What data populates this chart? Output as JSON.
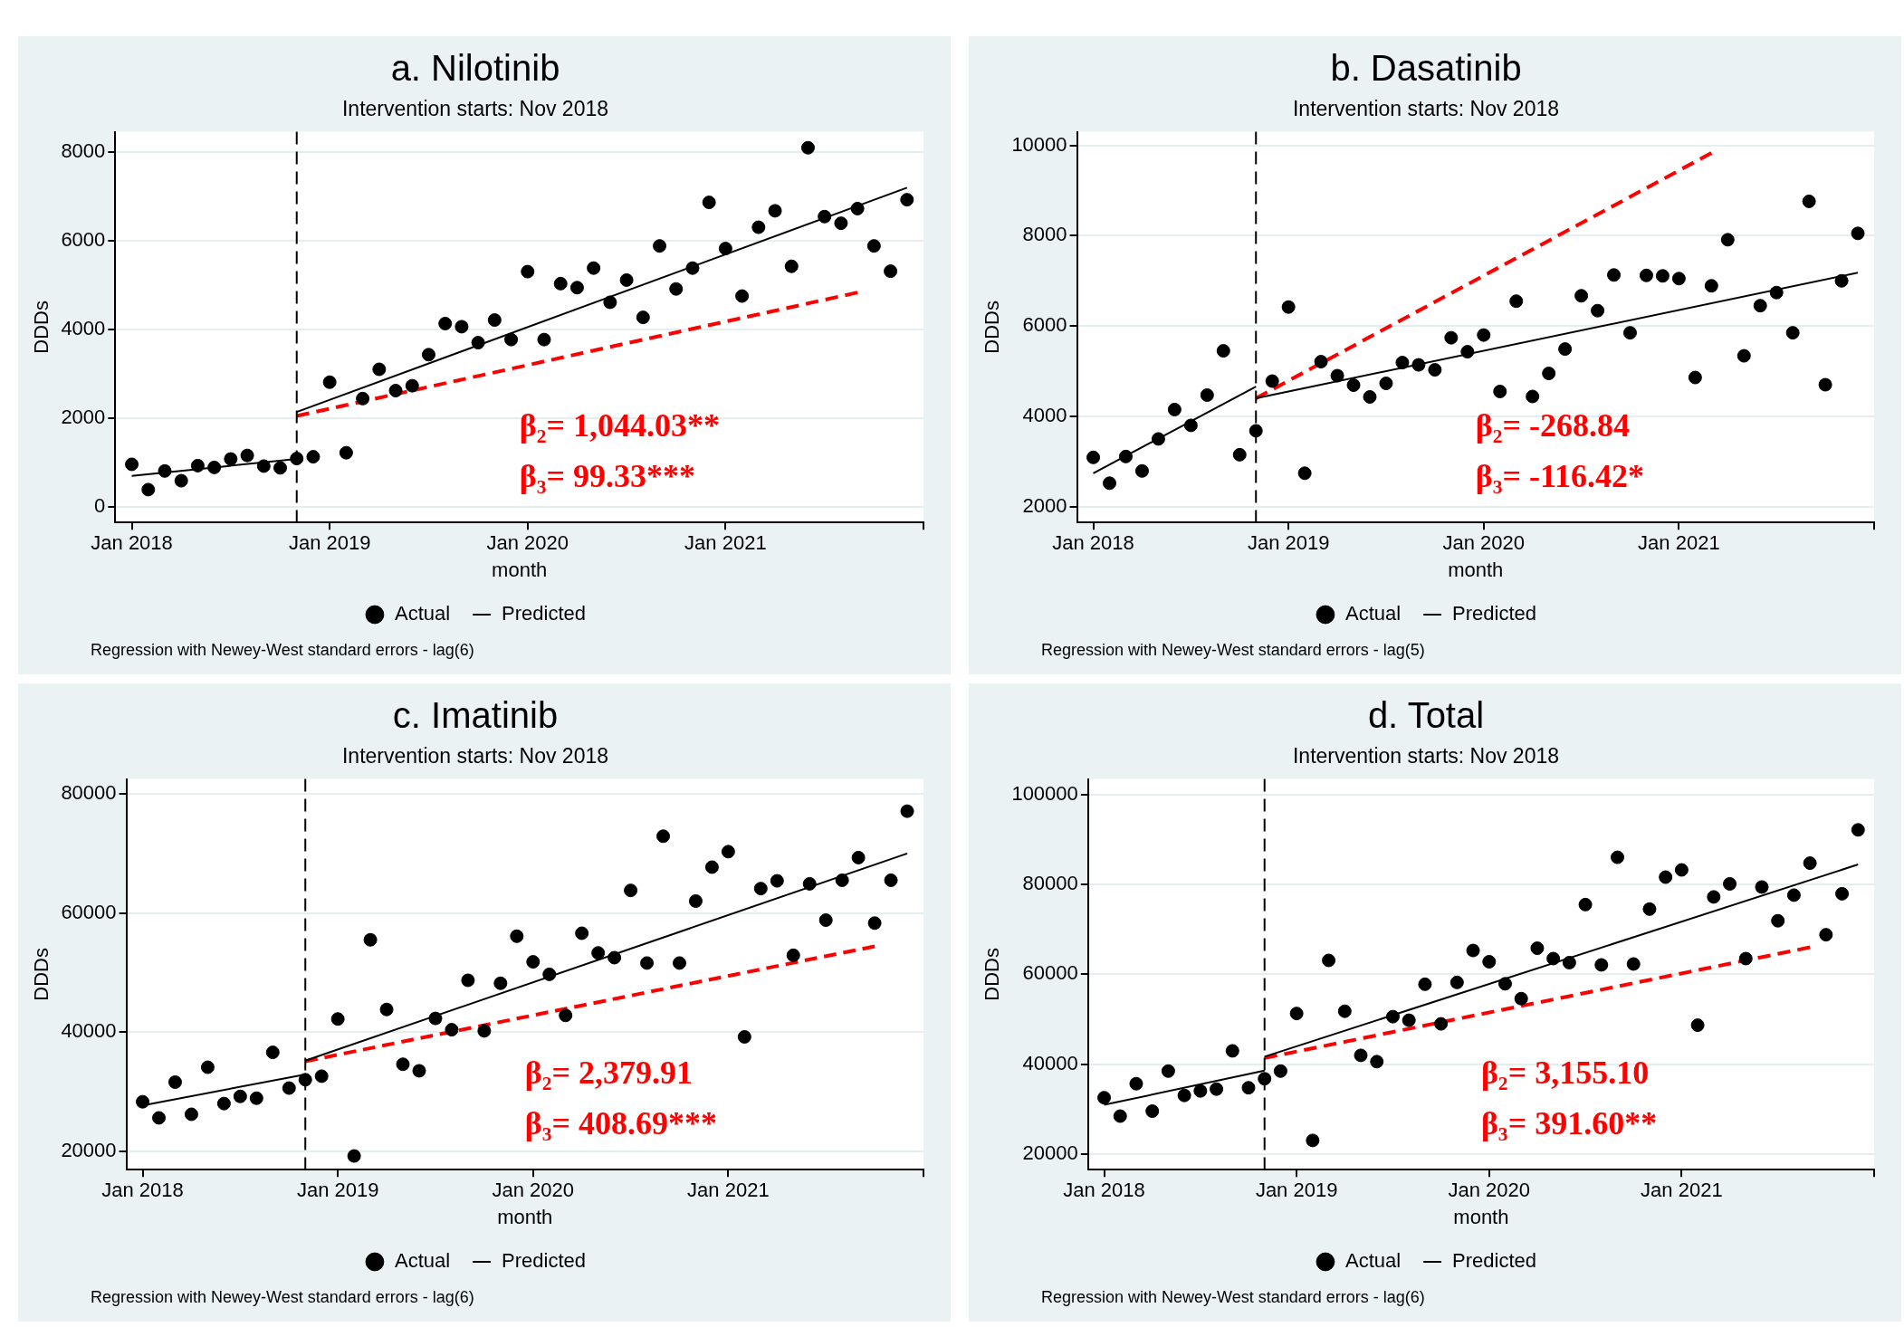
{
  "chart_data": [
    {
      "type": "scatter",
      "title": "a. Nilotinib",
      "subtitle": "Intervention starts: Nov 2018",
      "xlabel": "month",
      "ylabel": "DDDs",
      "x": [
        "2018-01",
        "2018-02",
        "2018-03",
        "2018-04",
        "2018-05",
        "2018-06",
        "2018-07",
        "2018-08",
        "2018-09",
        "2018-10",
        "2018-11",
        "2018-12",
        "2019-01",
        "2019-02",
        "2019-03",
        "2019-04",
        "2019-05",
        "2019-06",
        "2019-07",
        "2019-08",
        "2019-09",
        "2019-10",
        "2019-11",
        "2019-12",
        "2020-01",
        "2020-02",
        "2020-03",
        "2020-04",
        "2020-05",
        "2020-06",
        "2020-07",
        "2020-08",
        "2020-09",
        "2020-10",
        "2020-11",
        "2020-12",
        "2021-01",
        "2021-02",
        "2021-03",
        "2021-04",
        "2021-05",
        "2021-06",
        "2021-07",
        "2021-08",
        "2021-09",
        "2021-10",
        "2021-11",
        "2021-12"
      ],
      "series": [
        {
          "name": "Actual",
          "type": "scatter",
          "color": "#000000",
          "marker": "circle",
          "values": [
            960,
            390,
            810,
            590,
            930,
            890,
            1080,
            1160,
            920,
            880,
            1090,
            1130,
            2810,
            1220,
            2440,
            3100,
            2620,
            2730,
            3430,
            4130,
            4060,
            3700,
            4210,
            3770,
            5300,
            3770,
            5030,
            4940,
            5380,
            4610,
            5110,
            4270,
            5880,
            4910,
            5380,
            6860,
            5820,
            4750,
            6300,
            6670,
            5420,
            8090,
            6540,
            6390,
            6720,
            5880,
            5310,
            6920
          ]
        },
        {
          "name": "Predicted",
          "type": "line",
          "color": "#000000",
          "marker": "none",
          "line_style": "solid",
          "x": [
            "2018-01",
            "2018-11"
          ],
          "values": [
            700,
            1080
          ]
        },
        {
          "type": "line",
          "color": "#000000",
          "marker": "none",
          "line_style": "solid",
          "x": [
            "2018-11",
            "2021-12"
          ],
          "values": [
            2140,
            7190
          ]
        },
        {
          "type": "line",
          "color": "#ff0000",
          "marker": "none",
          "line_style": "dashed",
          "x": [
            "2018-11",
            "2021-09"
          ],
          "values": [
            2050,
            4830
          ]
        }
      ],
      "xlim": [
        "2017-12",
        "2022-01"
      ],
      "xticks": [
        {
          "value": "2018-01",
          "label": "Jan 2018"
        },
        {
          "value": "2019-01",
          "label": "Jan 2019"
        },
        {
          "value": "2020-01",
          "label": "Jan 2020"
        },
        {
          "value": "2021-01",
          "label": "Jan 2021"
        },
        {
          "value": "2022-01",
          "label": null
        }
      ],
      "ylim": [
        -350,
        8450
      ],
      "yticks": [
        0,
        2000,
        4000,
        6000,
        8000
      ],
      "grid": "y",
      "legend": "bottom",
      "ref_lines": [
        {
          "axis": "x",
          "value": "2018-11",
          "color": "#000000",
          "line_style": "dashed"
        }
      ],
      "annotations": [
        "β₂= 1,044.03**",
        "β₃= 99.33***",
        "Regression with Newey-West standard errors - lag(6)"
      ]
    },
    {
      "type": "scatter",
      "title": "b. Dasatinib",
      "subtitle": "Intervention starts: Nov 2018",
      "xlabel": "month",
      "ylabel": "DDDs",
      "x": [
        "2018-01",
        "2018-02",
        "2018-03",
        "2018-04",
        "2018-05",
        "2018-06",
        "2018-07",
        "2018-08",
        "2018-09",
        "2018-10",
        "2018-11",
        "2018-12",
        "2019-01",
        "2019-02",
        "2019-03",
        "2019-04",
        "2019-05",
        "2019-06",
        "2019-07",
        "2019-08",
        "2019-09",
        "2019-10",
        "2019-11",
        "2019-12",
        "2020-01",
        "2020-02",
        "2020-03",
        "2020-04",
        "2020-05",
        "2020-06",
        "2020-07",
        "2020-08",
        "2020-09",
        "2020-10",
        "2020-11",
        "2020-12",
        "2021-01",
        "2021-02",
        "2021-03",
        "2021-04",
        "2021-05",
        "2021-06",
        "2021-07",
        "2021-08",
        "2021-09",
        "2021-10",
        "2021-11",
        "2021-12"
      ],
      "series": [
        {
          "name": "Actual",
          "type": "scatter",
          "color": "#000000",
          "marker": "circle",
          "values": [
            3090,
            2520,
            3110,
            2790,
            3500,
            4150,
            3800,
            4470,
            5450,
            3150,
            3680,
            4780,
            6420,
            2740,
            5210,
            4900,
            4690,
            4430,
            4730,
            5190,
            5140,
            5030,
            5740,
            5430,
            5800,
            4550,
            6550,
            4440,
            4950,
            5490,
            6670,
            6340,
            7130,
            5850,
            7120,
            7110,
            7050,
            4860,
            6890,
            7910,
            5340,
            6450,
            6740,
            5850,
            8760,
            4700,
            7000,
            8050
          ]
        },
        {
          "name": "Predicted",
          "type": "line",
          "color": "#000000",
          "marker": "none",
          "line_style": "solid",
          "x": [
            "2018-01",
            "2018-11"
          ],
          "values": [
            2740,
            4660
          ]
        },
        {
          "type": "line",
          "color": "#000000",
          "marker": "none",
          "line_style": "solid",
          "x": [
            "2018-11",
            "2021-12"
          ],
          "values": [
            4400,
            7180
          ]
        },
        {
          "type": "line",
          "color": "#ff0000",
          "marker": "none",
          "line_style": "dashed",
          "x": [
            "2018-11",
            "2021-03"
          ],
          "values": [
            4400,
            9830
          ]
        }
      ],
      "xlim": [
        "2017-12",
        "2022-01"
      ],
      "xticks": [
        {
          "value": "2018-01",
          "label": "Jan 2018"
        },
        {
          "value": "2019-01",
          "label": "Jan 2019"
        },
        {
          "value": "2020-01",
          "label": "Jan 2020"
        },
        {
          "value": "2021-01",
          "label": "Jan 2021"
        },
        {
          "value": "2022-01",
          "label": null
        }
      ],
      "ylim": [
        1650,
        10300
      ],
      "yticks": [
        2000,
        4000,
        6000,
        8000,
        10000
      ],
      "grid": "y",
      "legend": "bottom",
      "ref_lines": [
        {
          "axis": "x",
          "value": "2018-11",
          "color": "#000000",
          "line_style": "dashed"
        }
      ],
      "annotations": [
        "β₂= -268.84",
        "β₃= -116.42*",
        "Regression with Newey-West standard errors - lag(5)"
      ]
    },
    {
      "type": "scatter",
      "title": "c. Imatinib",
      "subtitle": "Intervention starts: Nov 2018",
      "xlabel": "month",
      "ylabel": "DDDs",
      "x": [
        "2018-01",
        "2018-02",
        "2018-03",
        "2018-04",
        "2018-05",
        "2018-06",
        "2018-07",
        "2018-08",
        "2018-09",
        "2018-10",
        "2018-11",
        "2018-12",
        "2019-01",
        "2019-02",
        "2019-03",
        "2019-04",
        "2019-05",
        "2019-06",
        "2019-07",
        "2019-08",
        "2019-09",
        "2019-10",
        "2019-11",
        "2019-12",
        "2020-01",
        "2020-02",
        "2020-03",
        "2020-04",
        "2020-05",
        "2020-06",
        "2020-07",
        "2020-08",
        "2020-09",
        "2020-10",
        "2020-11",
        "2020-12",
        "2021-01",
        "2021-02",
        "2021-03",
        "2021-04",
        "2021-05",
        "2021-06",
        "2021-07",
        "2021-08",
        "2021-09",
        "2021-10",
        "2021-11",
        "2021-12"
      ],
      "series": [
        {
          "name": "Actual",
          "type": "scatter",
          "color": "#000000",
          "marker": "circle",
          "values": [
            28300,
            25600,
            31600,
            26200,
            34100,
            28000,
            29200,
            28900,
            36600,
            30600,
            32000,
            32600,
            42200,
            19200,
            55500,
            43800,
            34600,
            33500,
            42300,
            40400,
            48700,
            40200,
            48200,
            56100,
            51800,
            49700,
            42800,
            56600,
            53300,
            52500,
            63800,
            51600,
            72900,
            51600,
            62000,
            67700,
            70300,
            39200,
            64100,
            65400,
            52900,
            64900,
            58800,
            65500,
            69300,
            58300,
            65500,
            77100
          ]
        },
        {
          "name": "Predicted",
          "type": "line",
          "color": "#000000",
          "marker": "none",
          "line_style": "solid",
          "x": [
            "2018-01",
            "2018-11"
          ],
          "values": [
            27700,
            32900
          ]
        },
        {
          "type": "line",
          "color": "#000000",
          "marker": "none",
          "line_style": "solid",
          "x": [
            "2018-11",
            "2021-12"
          ],
          "values": [
            35200,
            70000
          ]
        },
        {
          "type": "line",
          "color": "#ff0000",
          "marker": "none",
          "line_style": "dashed",
          "x": [
            "2018-11",
            "2021-10"
          ],
          "values": [
            35100,
            54400
          ]
        }
      ],
      "xlim": [
        "2017-12",
        "2022-01"
      ],
      "xticks": [
        {
          "value": "2018-01",
          "label": "Jan 2018"
        },
        {
          "value": "2019-01",
          "label": "Jan 2019"
        },
        {
          "value": "2020-01",
          "label": "Jan 2020"
        },
        {
          "value": "2021-01",
          "label": "Jan 2021"
        },
        {
          "value": "2022-01",
          "label": null
        }
      ],
      "ylim": [
        16900,
        82500
      ],
      "yticks": [
        20000,
        40000,
        60000,
        80000
      ],
      "grid": "y",
      "legend": "bottom",
      "ref_lines": [
        {
          "axis": "x",
          "value": "2018-11",
          "color": "#000000",
          "line_style": "dashed"
        }
      ],
      "annotations": [
        "β₂= 2,379.91",
        "β₃= 408.69***",
        "Regression with Newey-West standard errors - lag(6)"
      ]
    },
    {
      "type": "scatter",
      "title": "d. Total",
      "subtitle": "Intervention starts: Nov 2018",
      "xlabel": "month",
      "ylabel": "DDDs",
      "x": [
        "2018-01",
        "2018-02",
        "2018-03",
        "2018-04",
        "2018-05",
        "2018-06",
        "2018-07",
        "2018-08",
        "2018-09",
        "2018-10",
        "2018-11",
        "2018-12",
        "2019-01",
        "2019-02",
        "2019-03",
        "2019-04",
        "2019-05",
        "2019-06",
        "2019-07",
        "2019-08",
        "2019-09",
        "2019-10",
        "2019-11",
        "2019-12",
        "2020-01",
        "2020-02",
        "2020-03",
        "2020-04",
        "2020-05",
        "2020-06",
        "2020-07",
        "2020-08",
        "2020-09",
        "2020-10",
        "2020-11",
        "2020-12",
        "2021-01",
        "2021-02",
        "2021-03",
        "2021-04",
        "2021-05",
        "2021-06",
        "2021-07",
        "2021-08",
        "2021-09",
        "2021-10",
        "2021-11",
        "2021-12"
      ],
      "series": [
        {
          "name": "Actual",
          "type": "scatter",
          "color": "#000000",
          "marker": "circle",
          "values": [
            32600,
            28500,
            35700,
            29600,
            38500,
            33100,
            34100,
            34500,
            43000,
            34800,
            36800,
            38500,
            51300,
            23100,
            63100,
            51800,
            42000,
            40600,
            50600,
            49800,
            57800,
            49000,
            58200,
            65300,
            62800,
            57900,
            54600,
            65800,
            63500,
            62600,
            75500,
            62100,
            86000,
            62300,
            74500,
            81600,
            83200,
            48700,
            77200,
            80100,
            63500,
            79400,
            71900,
            77600,
            84700,
            68800,
            77900,
            92100
          ]
        },
        {
          "name": "Predicted",
          "type": "line",
          "color": "#000000",
          "marker": "none",
          "line_style": "solid",
          "x": [
            "2018-01",
            "2018-11"
          ],
          "values": [
            31000,
            38600
          ]
        },
        {
          "type": "line",
          "color": "#000000",
          "marker": "none",
          "line_style": "solid",
          "x": [
            "2018-11",
            "2021-12"
          ],
          "values": [
            41700,
            84400
          ]
        },
        {
          "type": "line",
          "color": "#ff0000",
          "marker": "none",
          "line_style": "dashed",
          "x": [
            "2018-11",
            "2021-09"
          ],
          "values": [
            41400,
            66000
          ]
        }
      ],
      "xlim": [
        "2017-12",
        "2022-01"
      ],
      "xticks": [
        {
          "value": "2018-01",
          "label": "Jan 2018"
        },
        {
          "value": "2019-01",
          "label": "Jan 2019"
        },
        {
          "value": "2020-01",
          "label": "Jan 2020"
        },
        {
          "value": "2021-01",
          "label": "Jan 2021"
        },
        {
          "value": "2022-01",
          "label": null
        }
      ],
      "ylim": [
        16600,
        103400
      ],
      "yticks": [
        20000,
        40000,
        60000,
        80000,
        100000
      ],
      "grid": "y",
      "legend": "bottom",
      "ref_lines": [
        {
          "axis": "x",
          "value": "2018-11",
          "color": "#000000",
          "line_style": "dashed"
        }
      ],
      "annotations": [
        "β₂= 3,155.10",
        "β₃= 391.60**",
        "Regression with Newey-West standard errors - lag(6)"
      ]
    }
  ]
}
